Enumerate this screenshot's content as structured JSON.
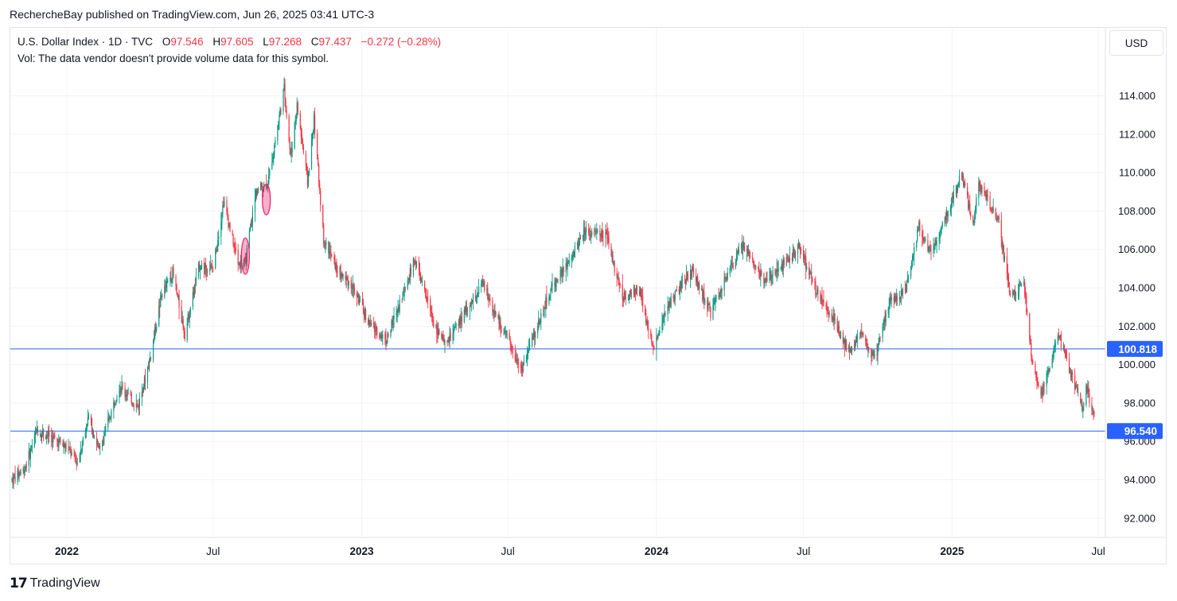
{
  "header": {
    "publish_text": "RechercheBay published on TradingView.com, Jun 26, 2025 03:41 UTC-3"
  },
  "legend": {
    "symbol": "U.S. Dollar Index · 1D · TVC",
    "open_label": "O",
    "open": "97.546",
    "high_label": "H",
    "high": "97.605",
    "low_label": "L",
    "low": "97.268",
    "close_label": "C",
    "close": "97.437",
    "change": "−0.272 (−0.28%)"
  },
  "vol_text": "Vol: The data vendor doesn't provide volume data for this symbol.",
  "currency_button": "USD",
  "footer": {
    "logo_mark": "𝟭𝟳",
    "brand": "TradingView"
  },
  "colors": {
    "up": "#089981",
    "down": "#f23645",
    "hline": "#2962ff",
    "marker": "#e91e63"
  },
  "chart_data": {
    "type": "candlestick",
    "title": "U.S. Dollar Index · 1D · TVC",
    "ylim": [
      91,
      117.5
    ],
    "y_ticks": [
      "92.000",
      "94.000",
      "96.000",
      "98.000",
      "100.000",
      "102.000",
      "104.000",
      "106.000",
      "108.000",
      "110.000",
      "112.000",
      "114.000"
    ],
    "y_tick_values": [
      92,
      94,
      96,
      98,
      100,
      102,
      104,
      106,
      108,
      110,
      112,
      114
    ],
    "x_range": [
      "2021-10-25",
      "2025-06-26"
    ],
    "x_ticks": [
      {
        "label": "2022",
        "date": "2022-01-01",
        "bold": true
      },
      {
        "label": "Jul",
        "date": "2022-07-01",
        "bold": false
      },
      {
        "label": "2023",
        "date": "2023-01-01",
        "bold": true
      },
      {
        "label": "Jul",
        "date": "2023-07-01",
        "bold": false
      },
      {
        "label": "2024",
        "date": "2024-01-01",
        "bold": true
      },
      {
        "label": "Jul",
        "date": "2024-07-01",
        "bold": false
      },
      {
        "label": "2025",
        "date": "2025-01-01",
        "bold": true
      },
      {
        "label": "Jul",
        "date": "2025-07-01",
        "bold": false
      }
    ],
    "horizontal_lines": [
      {
        "value": 100.818,
        "label": "100.818"
      },
      {
        "value": 96.54,
        "label": "96.540"
      }
    ],
    "markers": [
      {
        "date": "2022-08-10",
        "low": 104.7,
        "high": 106.6
      },
      {
        "date": "2022-09-05",
        "low": 107.8,
        "high": 109.4
      }
    ],
    "path_points": [
      [
        "2021-10-25",
        94.0
      ],
      [
        "2021-11-10",
        94.6
      ],
      [
        "2021-11-25",
        96.6
      ],
      [
        "2021-12-10",
        96.3
      ],
      [
        "2021-12-31",
        95.7
      ],
      [
        "2022-01-14",
        94.9
      ],
      [
        "2022-01-28",
        97.3
      ],
      [
        "2022-02-10",
        95.5
      ],
      [
        "2022-03-07",
        98.9
      ],
      [
        "2022-03-30",
        97.8
      ],
      [
        "2022-04-15",
        100.5
      ],
      [
        "2022-04-28",
        103.6
      ],
      [
        "2022-05-12",
        104.8
      ],
      [
        "2022-05-27",
        101.6
      ],
      [
        "2022-06-14",
        105.2
      ],
      [
        "2022-07-01",
        105.0
      ],
      [
        "2022-07-14",
        108.5
      ],
      [
        "2022-08-01",
        105.3
      ],
      [
        "2022-08-10",
        105.3
      ],
      [
        "2022-08-23",
        109.0
      ],
      [
        "2022-09-07",
        109.5
      ],
      [
        "2022-09-27",
        114.4
      ],
      [
        "2022-10-05",
        110.8
      ],
      [
        "2022-10-13",
        113.5
      ],
      [
        "2022-10-26",
        109.5
      ],
      [
        "2022-11-03",
        112.8
      ],
      [
        "2022-11-15",
        106.5
      ],
      [
        "2022-12-01",
        105.0
      ],
      [
        "2022-12-20",
        104.1
      ],
      [
        "2023-01-12",
        102.0
      ],
      [
        "2023-02-01",
        101.3
      ],
      [
        "2023-03-08",
        105.5
      ],
      [
        "2023-03-31",
        102.2
      ],
      [
        "2023-04-14",
        101.0
      ],
      [
        "2023-05-31",
        104.2
      ],
      [
        "2023-06-20",
        102.2
      ],
      [
        "2023-07-18",
        99.8
      ],
      [
        "2023-08-25",
        104.1
      ],
      [
        "2023-09-15",
        105.3
      ],
      [
        "2023-10-03",
        107.0
      ],
      [
        "2023-10-31",
        106.7
      ],
      [
        "2023-11-20",
        103.5
      ],
      [
        "2023-12-12",
        103.9
      ],
      [
        "2023-12-27",
        100.8
      ],
      [
        "2024-01-18",
        103.3
      ],
      [
        "2024-02-14",
        104.9
      ],
      [
        "2024-03-08",
        102.7
      ],
      [
        "2024-04-16",
        106.3
      ],
      [
        "2024-05-15",
        104.3
      ],
      [
        "2024-06-26",
        106.1
      ],
      [
        "2024-07-17",
        103.8
      ],
      [
        "2024-08-05",
        102.6
      ],
      [
        "2024-08-27",
        100.6
      ],
      [
        "2024-09-10",
        101.6
      ],
      [
        "2024-09-27",
        100.3
      ],
      [
        "2024-10-15",
        103.3
      ],
      [
        "2024-11-05",
        103.9
      ],
      [
        "2024-11-21",
        107.2
      ],
      [
        "2024-12-06",
        105.8
      ],
      [
        "2025-01-13",
        109.9
      ],
      [
        "2025-01-27",
        107.3
      ],
      [
        "2025-02-03",
        109.4
      ],
      [
        "2025-02-28",
        107.4
      ],
      [
        "2025-03-13",
        103.7
      ],
      [
        "2025-03-31",
        104.1
      ],
      [
        "2025-04-11",
        99.8
      ],
      [
        "2025-04-21",
        98.2
      ],
      [
        "2025-05-12",
        101.7
      ],
      [
        "2025-05-30",
        99.2
      ],
      [
        "2025-06-12",
        97.8
      ],
      [
        "2025-06-16",
        98.8
      ],
      [
        "2025-06-26",
        97.4
      ]
    ],
    "last_candle": {
      "open": 97.546,
      "high": 97.605,
      "low": 97.268,
      "close": 97.437
    }
  }
}
